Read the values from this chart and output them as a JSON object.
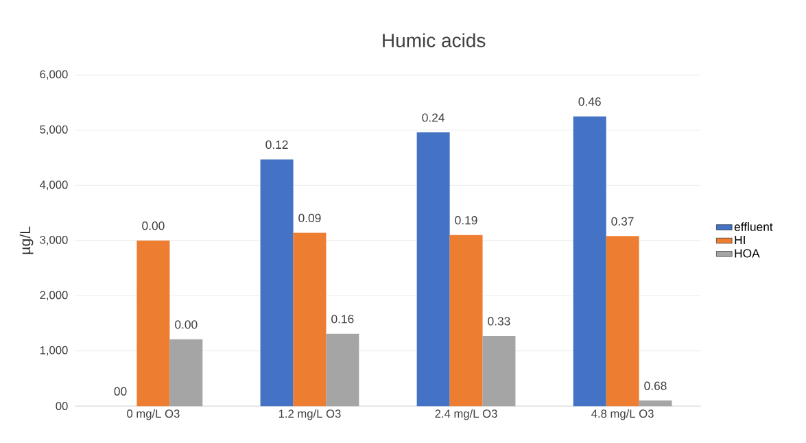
{
  "chart_data": {
    "type": "bar",
    "title": "Humic acids",
    "ylabel": "µg/L",
    "categories": [
      "0 mg/L O3",
      "1.2 mg/L O3",
      "2.4 mg/L O3",
      "4.8 mg/L O3"
    ],
    "series": [
      {
        "name": "effluent",
        "color": "#4472c4",
        "values": [
          0,
          4470,
          4960,
          5250
        ]
      },
      {
        "name": "HI",
        "color": "#ed7d31",
        "values": [
          3000,
          3140,
          3100,
          3080
        ]
      },
      {
        "name": "HOA",
        "color": "#a5a5a5",
        "values": [
          1210,
          1310,
          1270,
          100
        ]
      }
    ],
    "annotations": [
      "00",
      "0.12",
      "0.24",
      "0.46",
      "0.00",
      "0.09",
      "0.19",
      "0.37",
      "0.00",
      "0.16",
      "0.33",
      "0.68"
    ],
    "ylim": [
      0,
      6000
    ],
    "yticks": [
      {
        "value": 0,
        "label": "00"
      },
      {
        "value": 1000,
        "label": "1,000"
      },
      {
        "value": 2000,
        "label": "2,000"
      },
      {
        "value": 3000,
        "label": "3,000"
      },
      {
        "value": 4000,
        "label": "4,000"
      },
      {
        "value": 5000,
        "label": "5,000"
      },
      {
        "value": 6000,
        "label": "6,000"
      }
    ],
    "grid": "y",
    "legend": "right"
  }
}
